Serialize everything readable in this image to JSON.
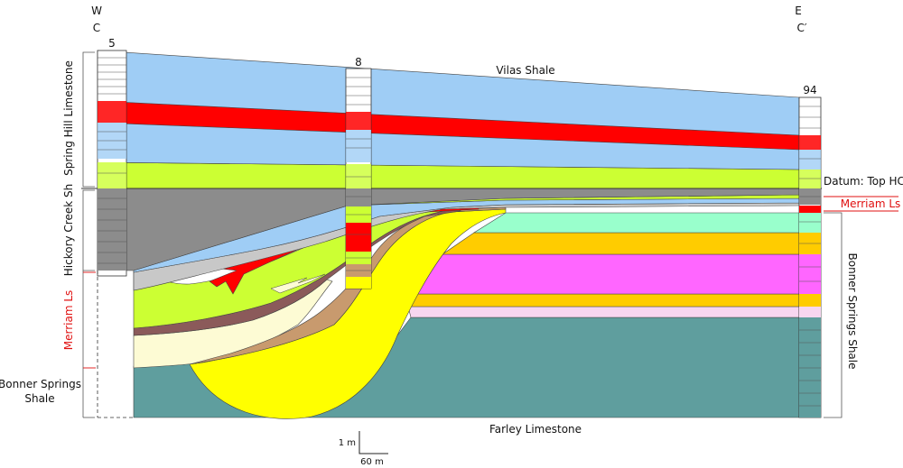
{
  "section": {
    "west_letters": [
      "W",
      "C"
    ],
    "east_letters": [
      "E",
      "C′"
    ],
    "well_ids": [
      "5",
      "8",
      "94"
    ],
    "datum_label": "Datum:  Top HC",
    "top_unit": "Vilas Shale",
    "bottom_unit": "Farley Limestone"
  },
  "left_units": {
    "spring_hill": "Spring Hill Limestone",
    "hickory_creek": "Hickory Creek Sh",
    "merriam": "Merriam Ls",
    "bonner_springs_line1": "Bonner Springs",
    "bonner_springs_line2": "Shale"
  },
  "right_units": {
    "merriam": "Merriam Ls",
    "bonner_springs": "Bonner Springs Shale"
  },
  "scale_bar": {
    "vertical": "1 m",
    "horizontal": "60 m"
  },
  "colors": {
    "vilas_shale": "#9fcdf5",
    "red_bed": "#ff0000",
    "green_yellow": "#ccff33",
    "gray_shale": "#8c8c8c",
    "light_gray": "#c8c8c8",
    "brown_thin": "#8b5a5a",
    "cream": "#fdfbd4",
    "tan": "#c89a6e",
    "yellow": "#ffff00",
    "aquamarine": "#99ffcc",
    "orange": "#ffcc00",
    "magenta": "#ff66ff",
    "pale_pink": "#f7d6f0",
    "teal": "#5f9e9e",
    "merriam_red": "#e01010"
  }
}
